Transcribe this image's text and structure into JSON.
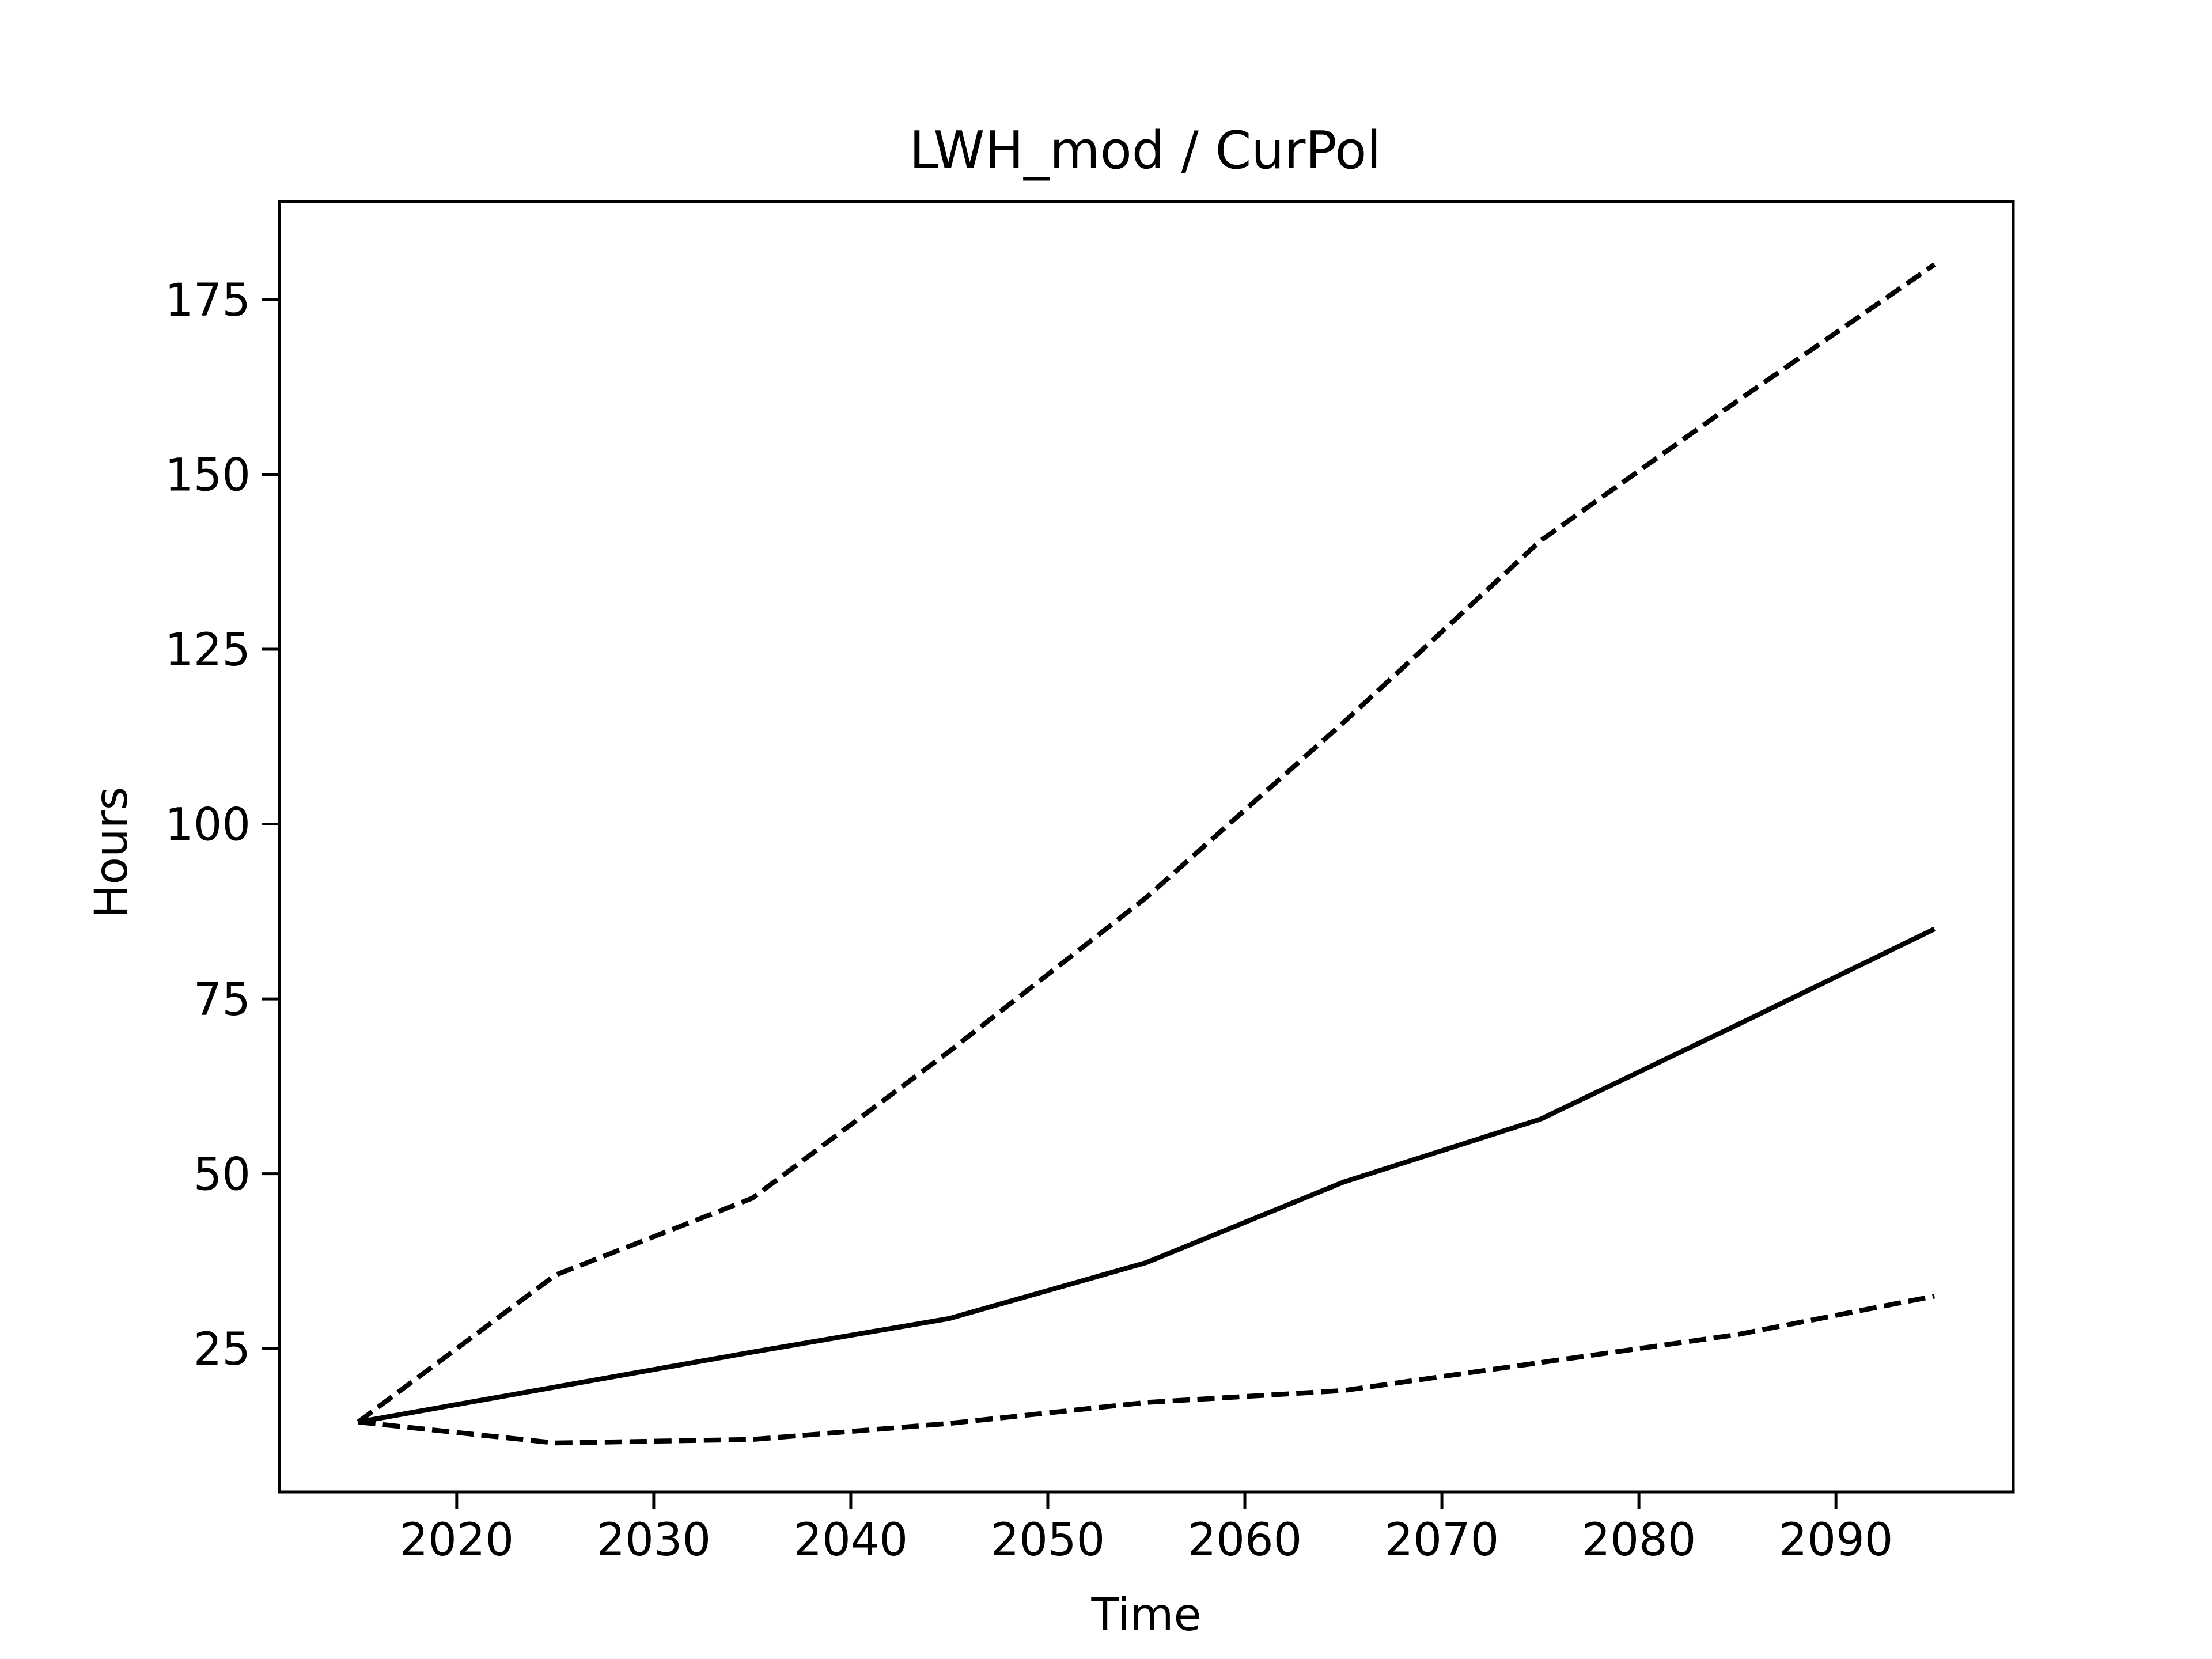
{
  "chart_data": {
    "type": "line",
    "title": "LWH_mod / CurPol",
    "xlabel": "Time",
    "ylabel": "Hours",
    "xlim": [
      2011,
      2099
    ],
    "ylim": [
      4.5,
      189
    ],
    "xticks": [
      2020,
      2030,
      2040,
      2050,
      2060,
      2070,
      2080,
      2090
    ],
    "yticks": [
      25,
      50,
      75,
      100,
      125,
      150,
      175
    ],
    "grid": false,
    "legend": "none",
    "x": [
      2015,
      2025,
      2035,
      2045,
      2055,
      2065,
      2075,
      2085,
      2095
    ],
    "series": [
      {
        "style": "dashed",
        "color": "#000000",
        "values": [
          14.5,
          35.5,
          46.5,
          67.5,
          89.5,
          114.5,
          140.5,
          160.5,
          180
        ]
      },
      {
        "style": "solid",
        "color": "#000000",
        "values": [
          14.5,
          19.5,
          24.5,
          29.3,
          37.3,
          48.8,
          57.8,
          71.3,
          85
        ]
      },
      {
        "style": "dashed",
        "color": "#000000",
        "values": [
          14.5,
          11.5,
          12.0,
          14.3,
          17.3,
          19.0,
          23.0,
          27.0,
          32.5
        ]
      }
    ]
  }
}
